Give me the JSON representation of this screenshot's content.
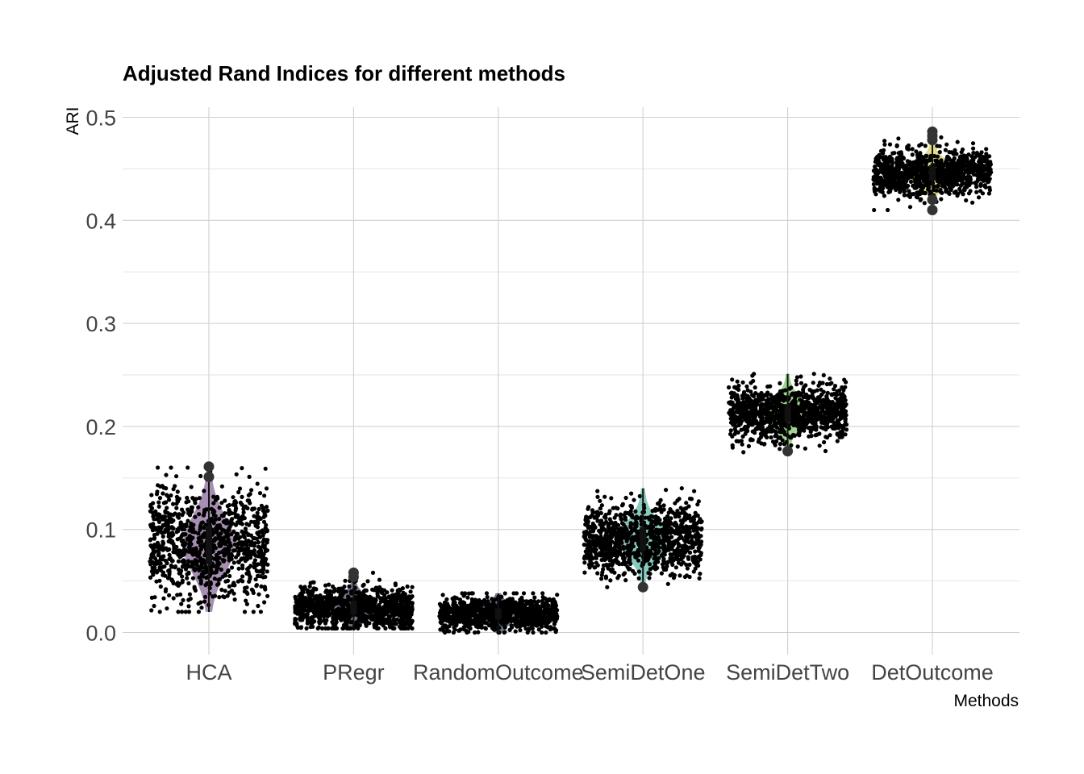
{
  "chart_data": {
    "type": "scatter",
    "subtype": "jittered points over violin and boxplot per category",
    "title": "Adjusted Rand Indices for different methods",
    "xlabel": "Methods",
    "ylabel": "ARI",
    "ylim": [
      -0.02,
      0.51
    ],
    "yticks": [
      0.0,
      0.1,
      0.2,
      0.3,
      0.4,
      0.5
    ],
    "ytick_labels": [
      "0.0",
      "0.1",
      "0.2",
      "0.3",
      "0.4",
      "0.5"
    ],
    "grid": true,
    "legend": "none",
    "point_color": "#000000",
    "outlier_color": "#333333",
    "categories": [
      "HCA",
      "PRegr",
      "RandomOutcome",
      "SemiDetOne",
      "SemiDetTwo",
      "DetOutcome"
    ],
    "series": [
      {
        "category": "HCA",
        "center": 0.085,
        "spread": 0.028,
        "min": 0.02,
        "max": 0.16,
        "n": 1000,
        "violin_color": "#8a6a9a",
        "outliers": [
          0.161,
          0.151
        ]
      },
      {
        "category": "PRegr",
        "center": 0.024,
        "spread": 0.01,
        "min": 0.004,
        "max": 0.058,
        "n": 1000,
        "violin_color": "#4a4a6a",
        "outliers": [
          0.058,
          0.054
        ]
      },
      {
        "category": "RandomOutcome",
        "center": 0.018,
        "spread": 0.008,
        "min": 0.0,
        "max": 0.038,
        "n": 1000,
        "violin_color": "#3a4a6a",
        "outliers": []
      },
      {
        "category": "SemiDetOne",
        "center": 0.091,
        "spread": 0.017,
        "min": 0.044,
        "max": 0.14,
        "n": 1000,
        "violin_color": "#5fb8a8",
        "outliers": [
          0.044
        ]
      },
      {
        "category": "SemiDetTwo",
        "center": 0.213,
        "spread": 0.013,
        "min": 0.175,
        "max": 0.251,
        "n": 1000,
        "violin_color": "#7cc66a",
        "outliers": [
          0.176
        ]
      },
      {
        "category": "DetOutcome",
        "center": 0.446,
        "spread": 0.011,
        "min": 0.41,
        "max": 0.486,
        "n": 1000,
        "violin_color": "#d8d060",
        "outliers": [
          0.486,
          0.482,
          0.478,
          0.42,
          0.41
        ]
      }
    ]
  }
}
